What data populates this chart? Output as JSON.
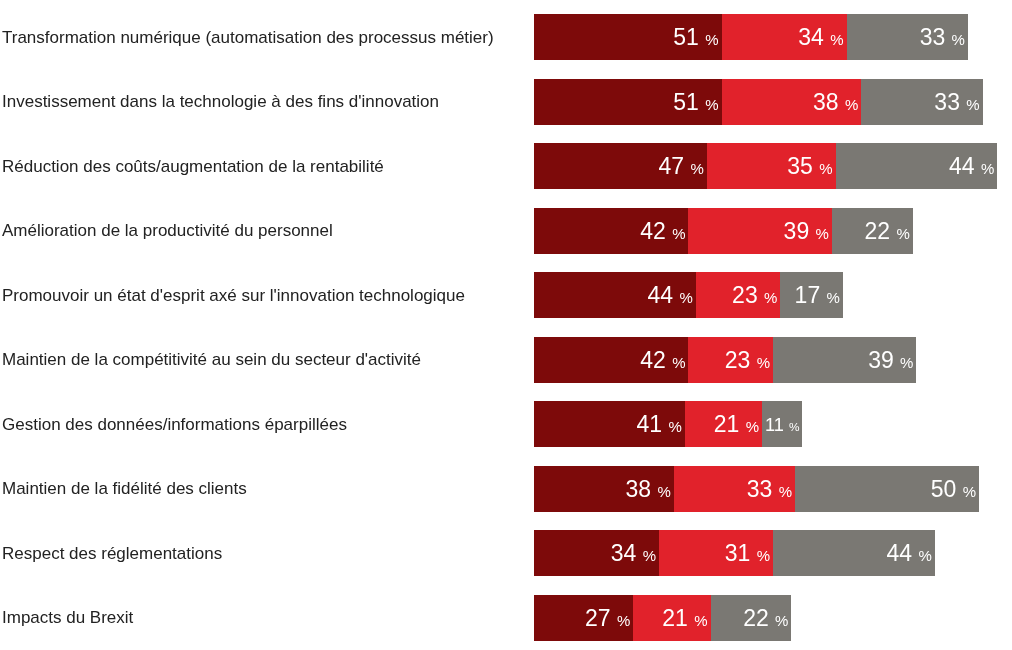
{
  "chart_data": {
    "type": "bar",
    "orientation": "horizontal",
    "stacked": true,
    "categories": [
      "Transformation numérique (automatisation des processus métier)",
      "Investissement dans la technologie à des fins d'innovation",
      "Réduction des coûts/augmentation de la rentabilité",
      "Amélioration de la productivité du personnel",
      "Promouvoir un état d'esprit axé sur l'innovation technologique",
      "Maintien de la compétitivité au sein du secteur d'activité",
      "Gestion des données/informations éparpillées",
      "Maintien de la fidélité des clients",
      "Respect des réglementations",
      "Impacts du Brexit"
    ],
    "series": [
      {
        "color": "#7d0a0a",
        "values": [
          51,
          51,
          47,
          42,
          44,
          42,
          41,
          38,
          34,
          27
        ],
        "value_labels": [
          "51 %",
          "51 %",
          "47 %",
          "42 %",
          "44 %",
          "42 %",
          "41 %",
          "38 %",
          "34 %",
          "27 %"
        ]
      },
      {
        "color": "#e1222b",
        "values": [
          34,
          38,
          35,
          39,
          23,
          23,
          21,
          33,
          31,
          21
        ],
        "value_labels": [
          "34 %",
          "38 %",
          "35 %",
          "39 %",
          "23 %",
          "23 %",
          "21 %",
          "33 %",
          "31 %",
          "21 %"
        ]
      },
      {
        "color": "#7a7873",
        "values": [
          33,
          33,
          44,
          22,
          17,
          39,
          11,
          50,
          44,
          22
        ],
        "value_labels": [
          "33 %",
          "33 %",
          "44 %",
          "22 %",
          "17 %",
          "39 %",
          "11 %",
          "50 %",
          "44 %",
          "22 %"
        ]
      }
    ],
    "tick_labels": false
  }
}
